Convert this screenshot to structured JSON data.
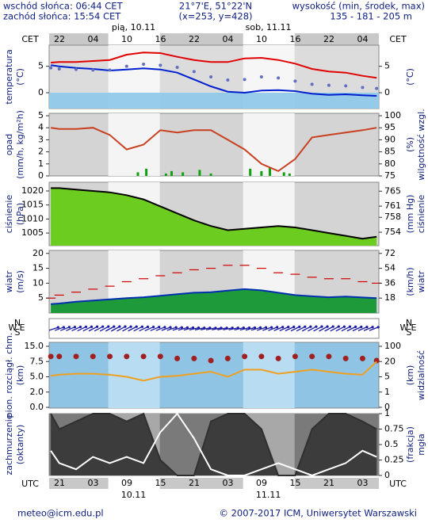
{
  "header": {
    "sunrise": "wschód słońca: 06:44 CET",
    "sunset": "zachód słońca: 15:54 CET",
    "coords": "21°7'E, 51°22'N",
    "grid_point": "(x=253, y=428)",
    "elevation_title": "wysokość (min, środek, max)",
    "elevation": "135 - 181 - 205 m"
  },
  "time_axis": {
    "top_zone": "CET",
    "bottom_zone": "UTC",
    "days_top": [
      "pią, 10.11",
      "sob, 11.11"
    ],
    "days_bottom": [
      "10.11",
      "11.11"
    ],
    "cet_hours": [
      "22",
      "04",
      "10",
      "16",
      "22",
      "04",
      "10",
      "16",
      "22",
      "04"
    ],
    "utc_hours": [
      "21",
      "03",
      "09",
      "15",
      "21",
      "03",
      "09",
      "15",
      "21",
      "03"
    ],
    "xlim": [
      -1.8,
      56.9
    ]
  },
  "wind_direction": {
    "labels": [
      "N",
      "W",
      "E",
      "S"
    ]
  },
  "chart_data": [
    {
      "type": "line",
      "ylabel": [
        "temperatura",
        "(°C)"
      ],
      "y2label": [
        "(°C)"
      ],
      "ylim": [
        -3,
        9
      ],
      "yticks": [
        0,
        5
      ],
      "y2lim": [
        -3,
        9
      ],
      "y2ticks": [
        0,
        5
      ],
      "x": [
        -1.5,
        0,
        3,
        6,
        9,
        12,
        15,
        18,
        21,
        24,
        27,
        30,
        33,
        36,
        39,
        42,
        45,
        48,
        51,
        54,
        56.5
      ],
      "series": [
        {
          "style": "line",
          "color": "#e00000",
          "values": [
            5.7,
            5.8,
            5.8,
            6.0,
            6.2,
            7.2,
            7.6,
            7.5,
            6.8,
            6.2,
            5.8,
            5.8,
            6.5,
            6.6,
            6.2,
            5.5,
            4.5,
            4.0,
            3.8,
            3.2,
            2.8
          ]
        },
        {
          "style": "line",
          "color": "#0020d0",
          "values": [
            5.2,
            5.0,
            4.7,
            4.5,
            4.2,
            4.4,
            4.6,
            4.4,
            3.8,
            2.5,
            1.2,
            0.2,
            0.0,
            0.4,
            0.5,
            0.3,
            -0.2,
            -0.4,
            -0.3,
            -0.5,
            -0.6
          ]
        },
        {
          "style": "dots",
          "color": "#6070c0",
          "values": [
            4.7,
            4.5,
            4.4,
            4.3,
            4.3,
            5.0,
            5.4,
            5.2,
            4.8,
            4.0,
            3.0,
            2.4,
            2.5,
            3.0,
            2.8,
            2.2,
            1.6,
            1.4,
            1.3,
            1.0,
            0.8
          ]
        }
      ]
    },
    {
      "type": "line",
      "ylabel": [
        "opad",
        "(mm/h, kg/m²h)"
      ],
      "y2label": [
        "(%)",
        "wilgotność wzgl."
      ],
      "ylim": [
        0,
        5.2
      ],
      "yticks": [
        0,
        1,
        2,
        3,
        4,
        5
      ],
      "y2lim": [
        75,
        101
      ],
      "y2ticks": [
        75,
        80,
        85,
        90,
        95,
        100
      ],
      "y2_tick_color": "#c83000",
      "x": [
        -1.5,
        0,
        3,
        6,
        9,
        12,
        15,
        18,
        21,
        24,
        27,
        30,
        33,
        36,
        39,
        42,
        45,
        48,
        51,
        54,
        56.5
      ],
      "series": [
        {
          "style": "bar",
          "color": "#10a010",
          "x": [
            14,
            15.5,
            19,
            20,
            22,
            25,
            27,
            34,
            36,
            37.5,
            40,
            41
          ],
          "values": [
            0.3,
            0.6,
            0.2,
            0.4,
            0.3,
            0.5,
            0.2,
            0.6,
            0.4,
            0.7,
            0.3,
            0.2
          ]
        },
        {
          "style": "line",
          "axis": "y2",
          "color": "#c84020",
          "values": [
            95,
            94.5,
            94.5,
            95,
            92,
            86,
            88,
            94,
            93,
            94,
            94,
            90,
            86,
            80,
            77,
            82,
            91,
            92,
            93,
            94,
            95
          ]
        }
      ]
    },
    {
      "type": "line",
      "ylabel": [
        "ciśnienie",
        "(hPa)"
      ],
      "y2label": [
        "(mm Hg)",
        "ciśnienie"
      ],
      "ylim": [
        1000.5,
        1023.1
      ],
      "yticks": [
        1005,
        1010,
        1015,
        1020
      ],
      "y2lim": [
        750.4,
        767.4
      ],
      "y2ticks": [
        754,
        758,
        761,
        765
      ],
      "x": [
        -1.5,
        0,
        3,
        6,
        9,
        12,
        15,
        18,
        21,
        24,
        27,
        30,
        33,
        36,
        39,
        42,
        45,
        48,
        51,
        54,
        56.5
      ],
      "series": [
        {
          "style": "area",
          "color": "#000000",
          "fill": "#6ccc20",
          "values": [
            1021,
            1021,
            1020.5,
            1020,
            1019.5,
            1018.5,
            1017,
            1014.5,
            1012,
            1009.5,
            1007.5,
            1006,
            1006.5,
            1007,
            1007.5,
            1007,
            1006,
            1005,
            1004,
            1003,
            1003.7
          ]
        }
      ]
    },
    {
      "type": "line",
      "ylabel": [
        "wiatr",
        "(m/s)"
      ],
      "y2label": [
        "(km/h)",
        "wiatr"
      ],
      "ylim": [
        0,
        21
      ],
      "yticks": [
        5,
        10,
        15,
        20
      ],
      "y2lim": [
        0,
        75.6
      ],
      "y2ticks": [
        18,
        36,
        54,
        72
      ],
      "x": [
        -1.5,
        0,
        3,
        6,
        9,
        12,
        15,
        18,
        21,
        24,
        27,
        30,
        33,
        36,
        39,
        42,
        45,
        48,
        51,
        54,
        56.5
      ],
      "series": [
        {
          "style": "area",
          "color": "#0030b0",
          "fill": "#1f9a3a",
          "values": [
            3.0,
            3.2,
            3.8,
            4.2,
            4.6,
            5.0,
            5.3,
            5.8,
            6.3,
            6.8,
            7.0,
            7.5,
            8.0,
            7.6,
            6.8,
            6.0,
            5.6,
            5.3,
            5.5,
            5.2,
            5.0
          ]
        },
        {
          "style": "dashes",
          "color": "#d00000",
          "values": [
            5,
            6,
            7,
            8,
            9,
            10.5,
            11.5,
            12.5,
            13.5,
            14.5,
            15,
            16,
            16,
            15,
            13.5,
            13,
            12,
            11.5,
            11.5,
            10.5,
            10
          ]
        }
      ]
    },
    {
      "type": "line",
      "scale": "piecewise",
      "ylabel": [
        "pion. rozciągł. chm.",
        "(km)"
      ],
      "y2label": [
        "(km)",
        "widzialność"
      ],
      "ylim": [
        0,
        15
      ],
      "yticks": [
        {
          "value": 0,
          "label": "0.0"
        },
        {
          "value": 2,
          "label": "2.0"
        },
        {
          "value": 5,
          "label": "5.0"
        },
        7.5,
        {
          "value": 15,
          "label": "15.0"
        }
      ],
      "y2lim": [
        0,
        100
      ],
      "y2ticks": [
        0,
        1,
        5,
        20,
        100
      ],
      "y2_tick_color": "#e08000",
      "x": [
        -1.5,
        0,
        3,
        6,
        9,
        12,
        15,
        18,
        21,
        24,
        27,
        30,
        33,
        36,
        39,
        42,
        45,
        48,
        51,
        54,
        56.5
      ],
      "series": [
        {
          "style": "dots",
          "color": "#a02020",
          "values": [
            10,
            10,
            10,
            10,
            10,
            10,
            10,
            10,
            9,
            9,
            8,
            9,
            10,
            10,
            9,
            10,
            10,
            10,
            9,
            9,
            8
          ]
        },
        {
          "style": "line",
          "axis": "y2",
          "color": "#f0a020",
          "values": [
            6,
            7,
            8,
            8,
            7,
            5,
            4,
            5,
            6,
            8,
            10,
            5,
            12,
            12,
            8,
            10,
            12,
            10,
            8,
            7,
            20
          ]
        }
      ]
    },
    {
      "type": "line",
      "ylabel": [
        "zachmurzenie",
        "(oktanty)"
      ],
      "y2label": [
        "(frakcja)",
        "mgła"
      ],
      "ylim": [
        0,
        8
      ],
      "y2lim": [
        0,
        1
      ],
      "y2ticks": [
        0,
        0.25,
        0.5,
        0.75,
        1
      ],
      "y2_tick_color": "#e08000",
      "x": [
        -1.5,
        0,
        3,
        6,
        9,
        12,
        15,
        18,
        21,
        24,
        27,
        30,
        33,
        36,
        39,
        42,
        45,
        48,
        51,
        54,
        56.5
      ],
      "series": [
        {
          "style": "area",
          "color": "#303030",
          "fill": "#3c3c3c",
          "values": [
            8,
            6,
            7,
            8,
            8,
            7,
            8,
            2,
            0,
            0,
            7,
            8,
            8,
            6,
            0,
            0,
            6,
            8,
            8,
            7,
            6
          ]
        },
        {
          "style": "line",
          "axis": "y2",
          "color": "#ffffff",
          "values": [
            0.4,
            0.2,
            0.1,
            0.3,
            0.2,
            0.3,
            0.2,
            0.7,
            1.0,
            0.6,
            0.1,
            0,
            0,
            0.1,
            0.2,
            0.1,
            0,
            0.1,
            0.2,
            0.4,
            0.3
          ]
        }
      ]
    }
  ],
  "footer": {
    "email": "meteo@icm.edu.pl",
    "copyright": "© 2007-2017 ICM, Uniwersytet Warszawski"
  }
}
